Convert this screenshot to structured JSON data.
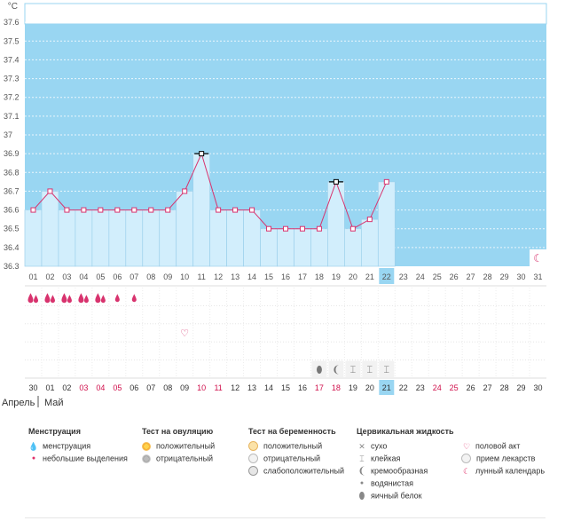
{
  "chart_data": {
    "type": "line",
    "unit_label": "°C",
    "y_ticks": [
      "37.6",
      "37.5",
      "37.4",
      "37.3",
      "37.2",
      "37.1",
      "37",
      "36.9",
      "36.8",
      "36.7",
      "36.6",
      "36.5",
      "36.4",
      "36.3"
    ],
    "ylim": [
      36.3,
      37.7
    ],
    "grid": true,
    "cycle_days": [
      "01",
      "02",
      "03",
      "04",
      "05",
      "06",
      "07",
      "08",
      "09",
      "10",
      "11",
      "12",
      "13",
      "14",
      "15",
      "16",
      "17",
      "18",
      "19",
      "20",
      "21",
      "22",
      "23",
      "24",
      "25",
      "26",
      "27",
      "28",
      "29",
      "30",
      "31"
    ],
    "temperatures": [
      36.6,
      36.7,
      36.6,
      36.6,
      36.6,
      36.6,
      36.6,
      36.6,
      36.6,
      36.7,
      36.9,
      36.6,
      36.6,
      36.6,
      36.5,
      36.5,
      36.5,
      36.5,
      36.75,
      36.5,
      36.55,
      36.75
    ],
    "marked_days": [
      "11",
      "19"
    ],
    "current_day": "22",
    "calendar_dates": [
      "30",
      "01",
      "02",
      "03",
      "04",
      "05",
      "06",
      "07",
      "08",
      "09",
      "10",
      "11",
      "12",
      "13",
      "14",
      "15",
      "16",
      "17",
      "18",
      "19",
      "20",
      "21",
      "22",
      "23",
      "24",
      "25",
      "26",
      "27",
      "28",
      "29",
      "30"
    ],
    "highlighted_dates": [
      "03",
      "04",
      "05",
      "10",
      "11",
      "17",
      "18",
      "24",
      "25"
    ],
    "current_date": "21",
    "month_labels": [
      "Апрель",
      "Май"
    ],
    "menstruation": [
      {
        "day": "01",
        "kind": "menstruation"
      },
      {
        "day": "02",
        "kind": "menstruation"
      },
      {
        "day": "03",
        "kind": "menstruation"
      },
      {
        "day": "04",
        "kind": "menstruation"
      },
      {
        "day": "05",
        "kind": "menstruation"
      },
      {
        "day": "06",
        "kind": "spotting"
      },
      {
        "day": "07",
        "kind": "spotting"
      }
    ],
    "intercourse_days": [
      "10"
    ],
    "cervical_fluid": [
      {
        "day": "18",
        "kind": "egg-white"
      },
      {
        "day": "19",
        "kind": "creamy"
      },
      {
        "day": "20",
        "kind": "sticky"
      },
      {
        "day": "21",
        "kind": "sticky"
      },
      {
        "day": "22",
        "kind": "sticky"
      }
    ],
    "moon_day": "31"
  },
  "legend": {
    "menstruation": {
      "title": "Менструация",
      "items": [
        "менструация",
        "небольшие выделения"
      ]
    },
    "ovulation_test": {
      "title": "Тест на овуляцию",
      "items": [
        "положительный",
        "отрицательный"
      ]
    },
    "pregnancy_test": {
      "title": "Тест на беременность",
      "items": [
        "положительный",
        "отрицательный",
        "слабоположительный"
      ]
    },
    "cervical_fluid": {
      "title": "Цервикальная жидкость",
      "items": [
        "сухо",
        "клейкая",
        "кремообразная",
        "водянистая",
        "яичный белок"
      ]
    },
    "other": {
      "items": [
        "половой акт",
        "прием лекарств",
        "лунный календарь"
      ]
    }
  },
  "colors": {
    "plot_bg": "#99d6f2",
    "bar_fill": "#d2eefc",
    "bar_stroke": "#9ed1ec",
    "line": "#d8336e",
    "highlight_date": "#d0104c",
    "current_cell": "#99d6f2"
  }
}
